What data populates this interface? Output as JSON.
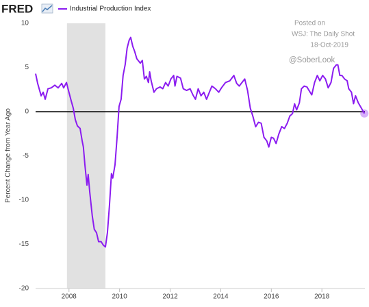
{
  "chart_data": {
    "type": "line",
    "logo": "FRED",
    "y_label": "Percent Change from Year Ago",
    "annotations": [
      "Posted on",
      "WSJ: The Daily Shot",
      "18-Oct-2019",
      "@SoberLook"
    ],
    "xlim": [
      2006.68,
      2019.7
    ],
    "xticks": [
      2008,
      2010,
      2012,
      2014,
      2016,
      2018
    ],
    "ylim": [
      -20,
      10
    ],
    "yticks": [
      10,
      5,
      0,
      -5,
      -10,
      -15,
      -20
    ],
    "grid": false,
    "reference_line": 0,
    "shaded_ranges": [
      [
        2007.92,
        2009.44
      ]
    ],
    "x": [
      2006.68,
      2006.76,
      2006.9,
      2006.98,
      2007.06,
      2007.17,
      2007.3,
      2007.44,
      2007.57,
      2007.71,
      2007.79,
      2007.9,
      2007.98,
      2008.09,
      2008.17,
      2008.25,
      2008.33,
      2008.44,
      2008.52,
      2008.57,
      2008.63,
      2008.71,
      2008.76,
      2008.82,
      2008.92,
      2009.0,
      2009.09,
      2009.17,
      2009.27,
      2009.36,
      2009.44,
      2009.52,
      2009.6,
      2009.68,
      2009.73,
      2009.82,
      2009.9,
      2009.98,
      2010.06,
      2010.14,
      2010.22,
      2010.3,
      2010.38,
      2010.44,
      2010.52,
      2010.6,
      2010.68,
      2010.82,
      2010.9,
      2010.98,
      2011.06,
      2011.14,
      2011.19,
      2011.25,
      2011.36,
      2011.46,
      2011.6,
      2011.71,
      2011.82,
      2011.92,
      2012.03,
      2012.14,
      2012.19,
      2012.27,
      2012.41,
      2012.52,
      2012.65,
      2012.79,
      2012.9,
      2013.0,
      2013.11,
      2013.22,
      2013.33,
      2013.44,
      2013.55,
      2013.65,
      2013.79,
      2013.92,
      2014.03,
      2014.19,
      2014.36,
      2014.52,
      2014.63,
      2014.73,
      2014.84,
      2014.95,
      2015.06,
      2015.17,
      2015.27,
      2015.38,
      2015.49,
      2015.6,
      2015.71,
      2015.82,
      2015.9,
      2016.0,
      2016.09,
      2016.19,
      2016.3,
      2016.41,
      2016.52,
      2016.63,
      2016.73,
      2016.84,
      2016.92,
      2017.0,
      2017.11,
      2017.19,
      2017.3,
      2017.41,
      2017.49,
      2017.6,
      2017.71,
      2017.82,
      2017.92,
      2018.03,
      2018.14,
      2018.25,
      2018.36,
      2018.46,
      2018.57,
      2018.63,
      2018.71,
      2018.79,
      2018.9,
      2019.0,
      2019.06,
      2019.17,
      2019.25,
      2019.33,
      2019.44,
      2019.52,
      2019.6,
      2019.68
    ],
    "series": [
      {
        "name": "Industrial Production Index",
        "color": "#8b1cf0",
        "values": [
          4.3,
          3.2,
          1.8,
          2.2,
          1.4,
          2.6,
          2.7,
          3.0,
          2.7,
          3.2,
          2.7,
          3.3,
          2.4,
          1.2,
          0.4,
          -0.9,
          -1.6,
          -1.9,
          -3.3,
          -4.0,
          -6.0,
          -8.3,
          -7.1,
          -9.1,
          -11.8,
          -13.3,
          -13.7,
          -14.7,
          -14.7,
          -15.1,
          -15.3,
          -13.7,
          -10.6,
          -7.0,
          -7.5,
          -6.0,
          -2.9,
          0.6,
          1.4,
          4.1,
          5.3,
          7.2,
          8.1,
          8.4,
          7.4,
          6.8,
          6.0,
          5.5,
          5.8,
          3.7,
          4.0,
          3.3,
          4.5,
          3.5,
          2.2,
          2.6,
          2.8,
          2.6,
          3.3,
          2.9,
          3.7,
          4.1,
          2.9,
          4.0,
          3.8,
          2.6,
          2.4,
          2.6,
          1.9,
          1.4,
          2.6,
          1.8,
          2.2,
          1.4,
          2.2,
          2.9,
          2.6,
          2.2,
          2.7,
          3.3,
          3.5,
          4.1,
          3.2,
          2.9,
          3.3,
          3.7,
          2.4,
          0.4,
          -0.5,
          -1.7,
          -1.2,
          -1.3,
          -2.9,
          -3.3,
          -4.0,
          -2.9,
          -3.0,
          -3.6,
          -2.5,
          -1.7,
          -1.9,
          -1.3,
          -0.5,
          -0.2,
          0.9,
          0.2,
          1.0,
          2.6,
          2.9,
          2.8,
          2.4,
          1.9,
          3.3,
          4.1,
          3.5,
          4.1,
          3.7,
          2.7,
          3.3,
          4.9,
          5.3,
          5.3,
          4.1,
          4.1,
          3.7,
          3.5,
          2.6,
          2.2,
          0.9,
          1.8,
          1.0,
          0.6,
          0.2,
          -0.2
        ]
      }
    ]
  }
}
